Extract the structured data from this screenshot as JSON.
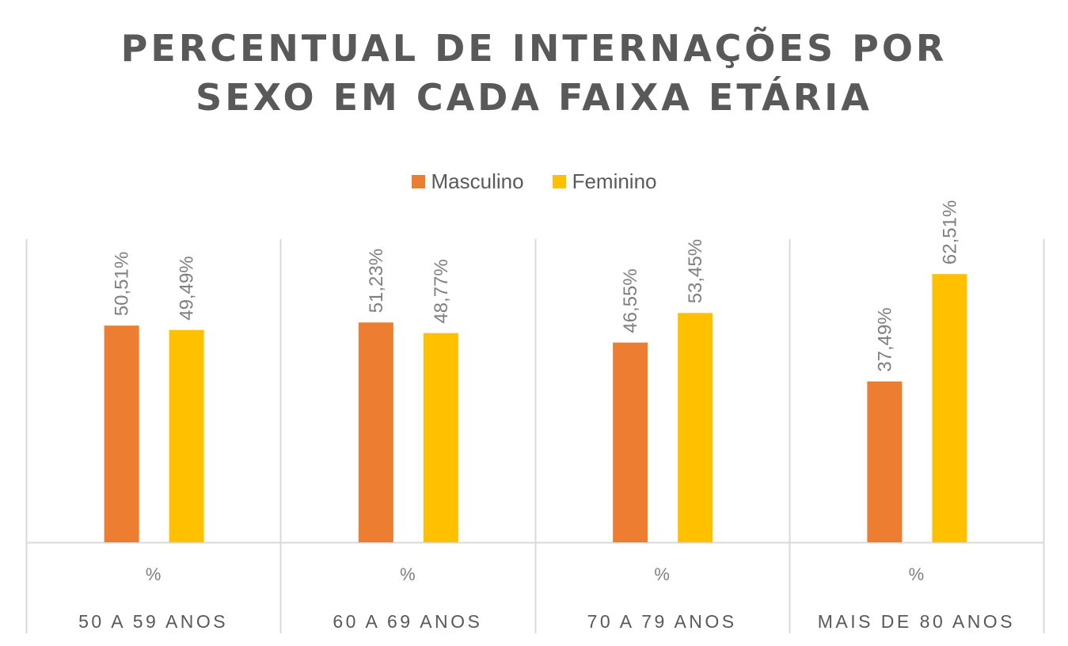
{
  "chart_data": {
    "type": "bar",
    "title": [
      "PERCENTUAL DE INTERNAÇÕES POR",
      "SEXO EM CADA FAIXA ETÁRIA"
    ],
    "categories": [
      "50 A 59 ANOS",
      "60 A 69 ANOS",
      "70 A 79 ANOS",
      "MAIS DE 80 ANOS"
    ],
    "category_sublabel": "%",
    "series": [
      {
        "name": "Masculino",
        "color": "#ED7D31",
        "values": [
          50.51,
          51.23,
          46.55,
          37.49
        ],
        "labels": [
          "50,51%",
          "51,23%",
          "46,55%",
          "37,49%"
        ]
      },
      {
        "name": "Feminino",
        "color": "#FFC000",
        "values": [
          49.49,
          48.77,
          53.45,
          62.51
        ],
        "labels": [
          "49,49%",
          "48,77%",
          "53,45%",
          "62,51%"
        ]
      }
    ],
    "ylim": [
      0,
      70
    ],
    "grid": false,
    "legend_position": "top",
    "xlabel": "",
    "ylabel": ""
  }
}
